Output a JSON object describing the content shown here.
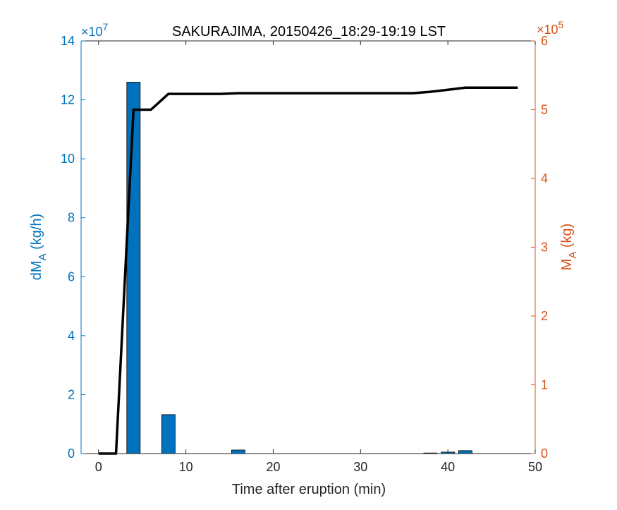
{
  "chart_data": {
    "type": "bar",
    "title": "SAKURAJIMA, 20150426_18:29-19:19 LST",
    "xlabel": "Time after eruption (min)",
    "ylabel_left": {
      "main": "dM",
      "sub": "A",
      "unit": " (kg/h)"
    },
    "ylabel_right": {
      "main": "M",
      "sub": "A",
      "unit": " (kg)"
    },
    "xlim": [
      -2,
      50
    ],
    "ylim_left": [
      0,
      14
    ],
    "ylim_right": [
      0,
      6
    ],
    "xticks": [
      0,
      10,
      20,
      30,
      40,
      50
    ],
    "yticks_left": [
      0,
      2,
      4,
      6,
      8,
      10,
      12,
      14
    ],
    "yticks_right": [
      0,
      1,
      2,
      3,
      4,
      5,
      6
    ],
    "left_exponent": {
      "base": "×10",
      "power": "7"
    },
    "right_exponent": {
      "base": "×10",
      "power": "5"
    },
    "bar_series": {
      "name": "dM_A",
      "x": [
        0,
        2,
        4,
        6,
        8,
        10,
        12,
        14,
        16,
        18,
        20,
        22,
        24,
        26,
        28,
        30,
        32,
        34,
        36,
        38,
        40,
        42,
        44,
        46,
        48
      ],
      "values": [
        0,
        0,
        12.6,
        0,
        1.32,
        0,
        0,
        0,
        0.12,
        0,
        0,
        0,
        0,
        0,
        0,
        0,
        0,
        0,
        0,
        0.02,
        0.05,
        0.1,
        0,
        0,
        0
      ]
    },
    "line_series": {
      "name": "M_A",
      "x": [
        0,
        2,
        4,
        6,
        8,
        10,
        12,
        14,
        16,
        18,
        20,
        22,
        24,
        26,
        28,
        30,
        32,
        34,
        36,
        38,
        40,
        42,
        44,
        46,
        48
      ],
      "values": [
        0,
        0,
        5.0,
        5.0,
        5.23,
        5.23,
        5.23,
        5.23,
        5.24,
        5.24,
        5.24,
        5.24,
        5.24,
        5.24,
        5.24,
        5.24,
        5.24,
        5.24,
        5.24,
        5.26,
        5.29,
        5.32,
        5.32,
        5.32,
        5.32
      ]
    },
    "colors": {
      "bar": "#0072BD",
      "left_axis": "#0072BD",
      "right_axis": "#D95319",
      "line": "#000000"
    },
    "grid": false
  }
}
